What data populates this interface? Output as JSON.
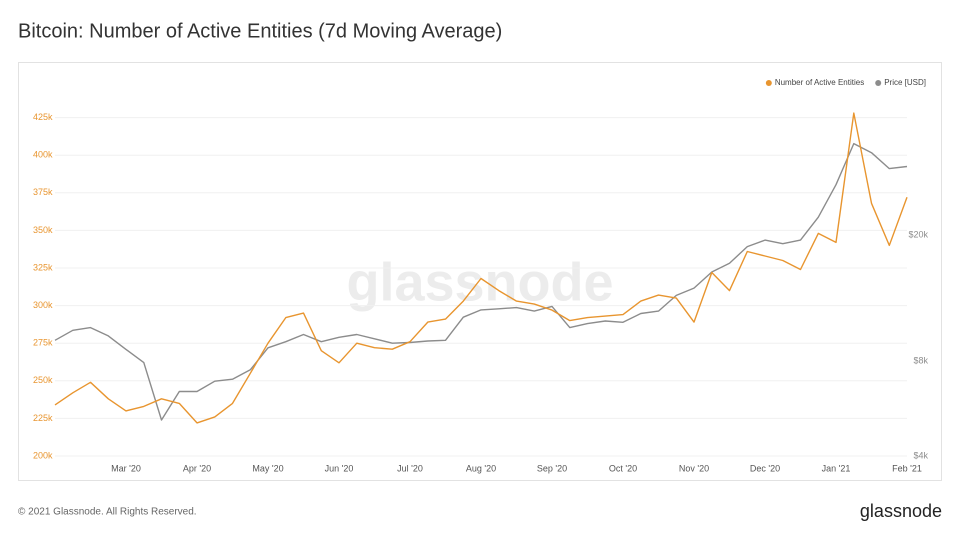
{
  "chart_data": {
    "type": "line",
    "title": "Bitcoin: Number of Active Entities (7d Moving Average)",
    "watermark": "glassnode",
    "footer": "© 2021 Glassnode. All Rights Reserved.",
    "brand": "glassnode",
    "legend": "top-right",
    "grid": true,
    "y2scale": "log",
    "categories": [
      null,
      null,
      null,
      null,
      "Mar '20",
      null,
      null,
      null,
      "Apr '20",
      null,
      null,
      null,
      "May '20",
      null,
      null,
      null,
      "Jun '20",
      null,
      null,
      null,
      "Jul '20",
      null,
      null,
      null,
      "Aug '20",
      null,
      null,
      null,
      "Sep '20",
      null,
      null,
      null,
      "Oct '20",
      null,
      null,
      null,
      "Nov '20",
      null,
      null,
      null,
      "Dec '20",
      null,
      null,
      null,
      "Jan '21",
      null,
      null,
      null,
      "Feb '21"
    ],
    "series": [
      {
        "name": "Number of Active Entities",
        "color": "#e8952f",
        "values": [
          234000,
          242000,
          249000,
          238000,
          230000,
          233000,
          238000,
          235000,
          222000,
          226000,
          235000,
          255000,
          275000,
          292000,
          295000,
          270000,
          262000,
          275000,
          272000,
          271000,
          276000,
          289000,
          291000,
          303000,
          318000,
          310000,
          303000,
          301000,
          297000,
          290000,
          292000,
          293000,
          294000,
          303000,
          307000,
          305000,
          289000,
          322000,
          310000,
          336000,
          333000,
          330000,
          324000,
          348000,
          342000,
          428000,
          368000,
          340000,
          372000
        ]
      },
      {
        "name": "Price [USD]",
        "color": "#8c8c8c",
        "axis": "y2",
        "values": [
          9300,
          10000,
          10200,
          9600,
          8700,
          7900,
          5200,
          6400,
          6400,
          6900,
          7000,
          7500,
          8800,
          9200,
          9700,
          9200,
          9500,
          9700,
          9400,
          9100,
          9150,
          9250,
          9300,
          11000,
          11600,
          11700,
          11800,
          11500,
          11900,
          10200,
          10500,
          10700,
          10600,
          11300,
          11500,
          12900,
          13600,
          15300,
          16300,
          18400,
          19300,
          18800,
          19300,
          22800,
          28900,
          39000,
          36500,
          32500,
          33000
        ]
      }
    ],
    "ylim": [
      200000,
      450000
    ],
    "yticks": [
      {
        "value": 200000,
        "label": "200k"
      },
      {
        "value": 225000,
        "label": "225k"
      },
      {
        "value": 250000,
        "label": "250k"
      },
      {
        "value": 275000,
        "label": "275k"
      },
      {
        "value": 300000,
        "label": "300k"
      },
      {
        "value": 325000,
        "label": "325k"
      },
      {
        "value": 350000,
        "label": "350k"
      },
      {
        "value": 375000,
        "label": "375k"
      },
      {
        "value": 400000,
        "label": "400k"
      },
      {
        "value": 425000,
        "label": "425k"
      }
    ],
    "y2lim": [
      4000,
      62000
    ],
    "y2ticks": [
      {
        "value": 4000,
        "label": "$4k"
      },
      {
        "value": 8000,
        "label": "$8k"
      },
      {
        "value": 20000,
        "label": "$20k"
      }
    ]
  }
}
